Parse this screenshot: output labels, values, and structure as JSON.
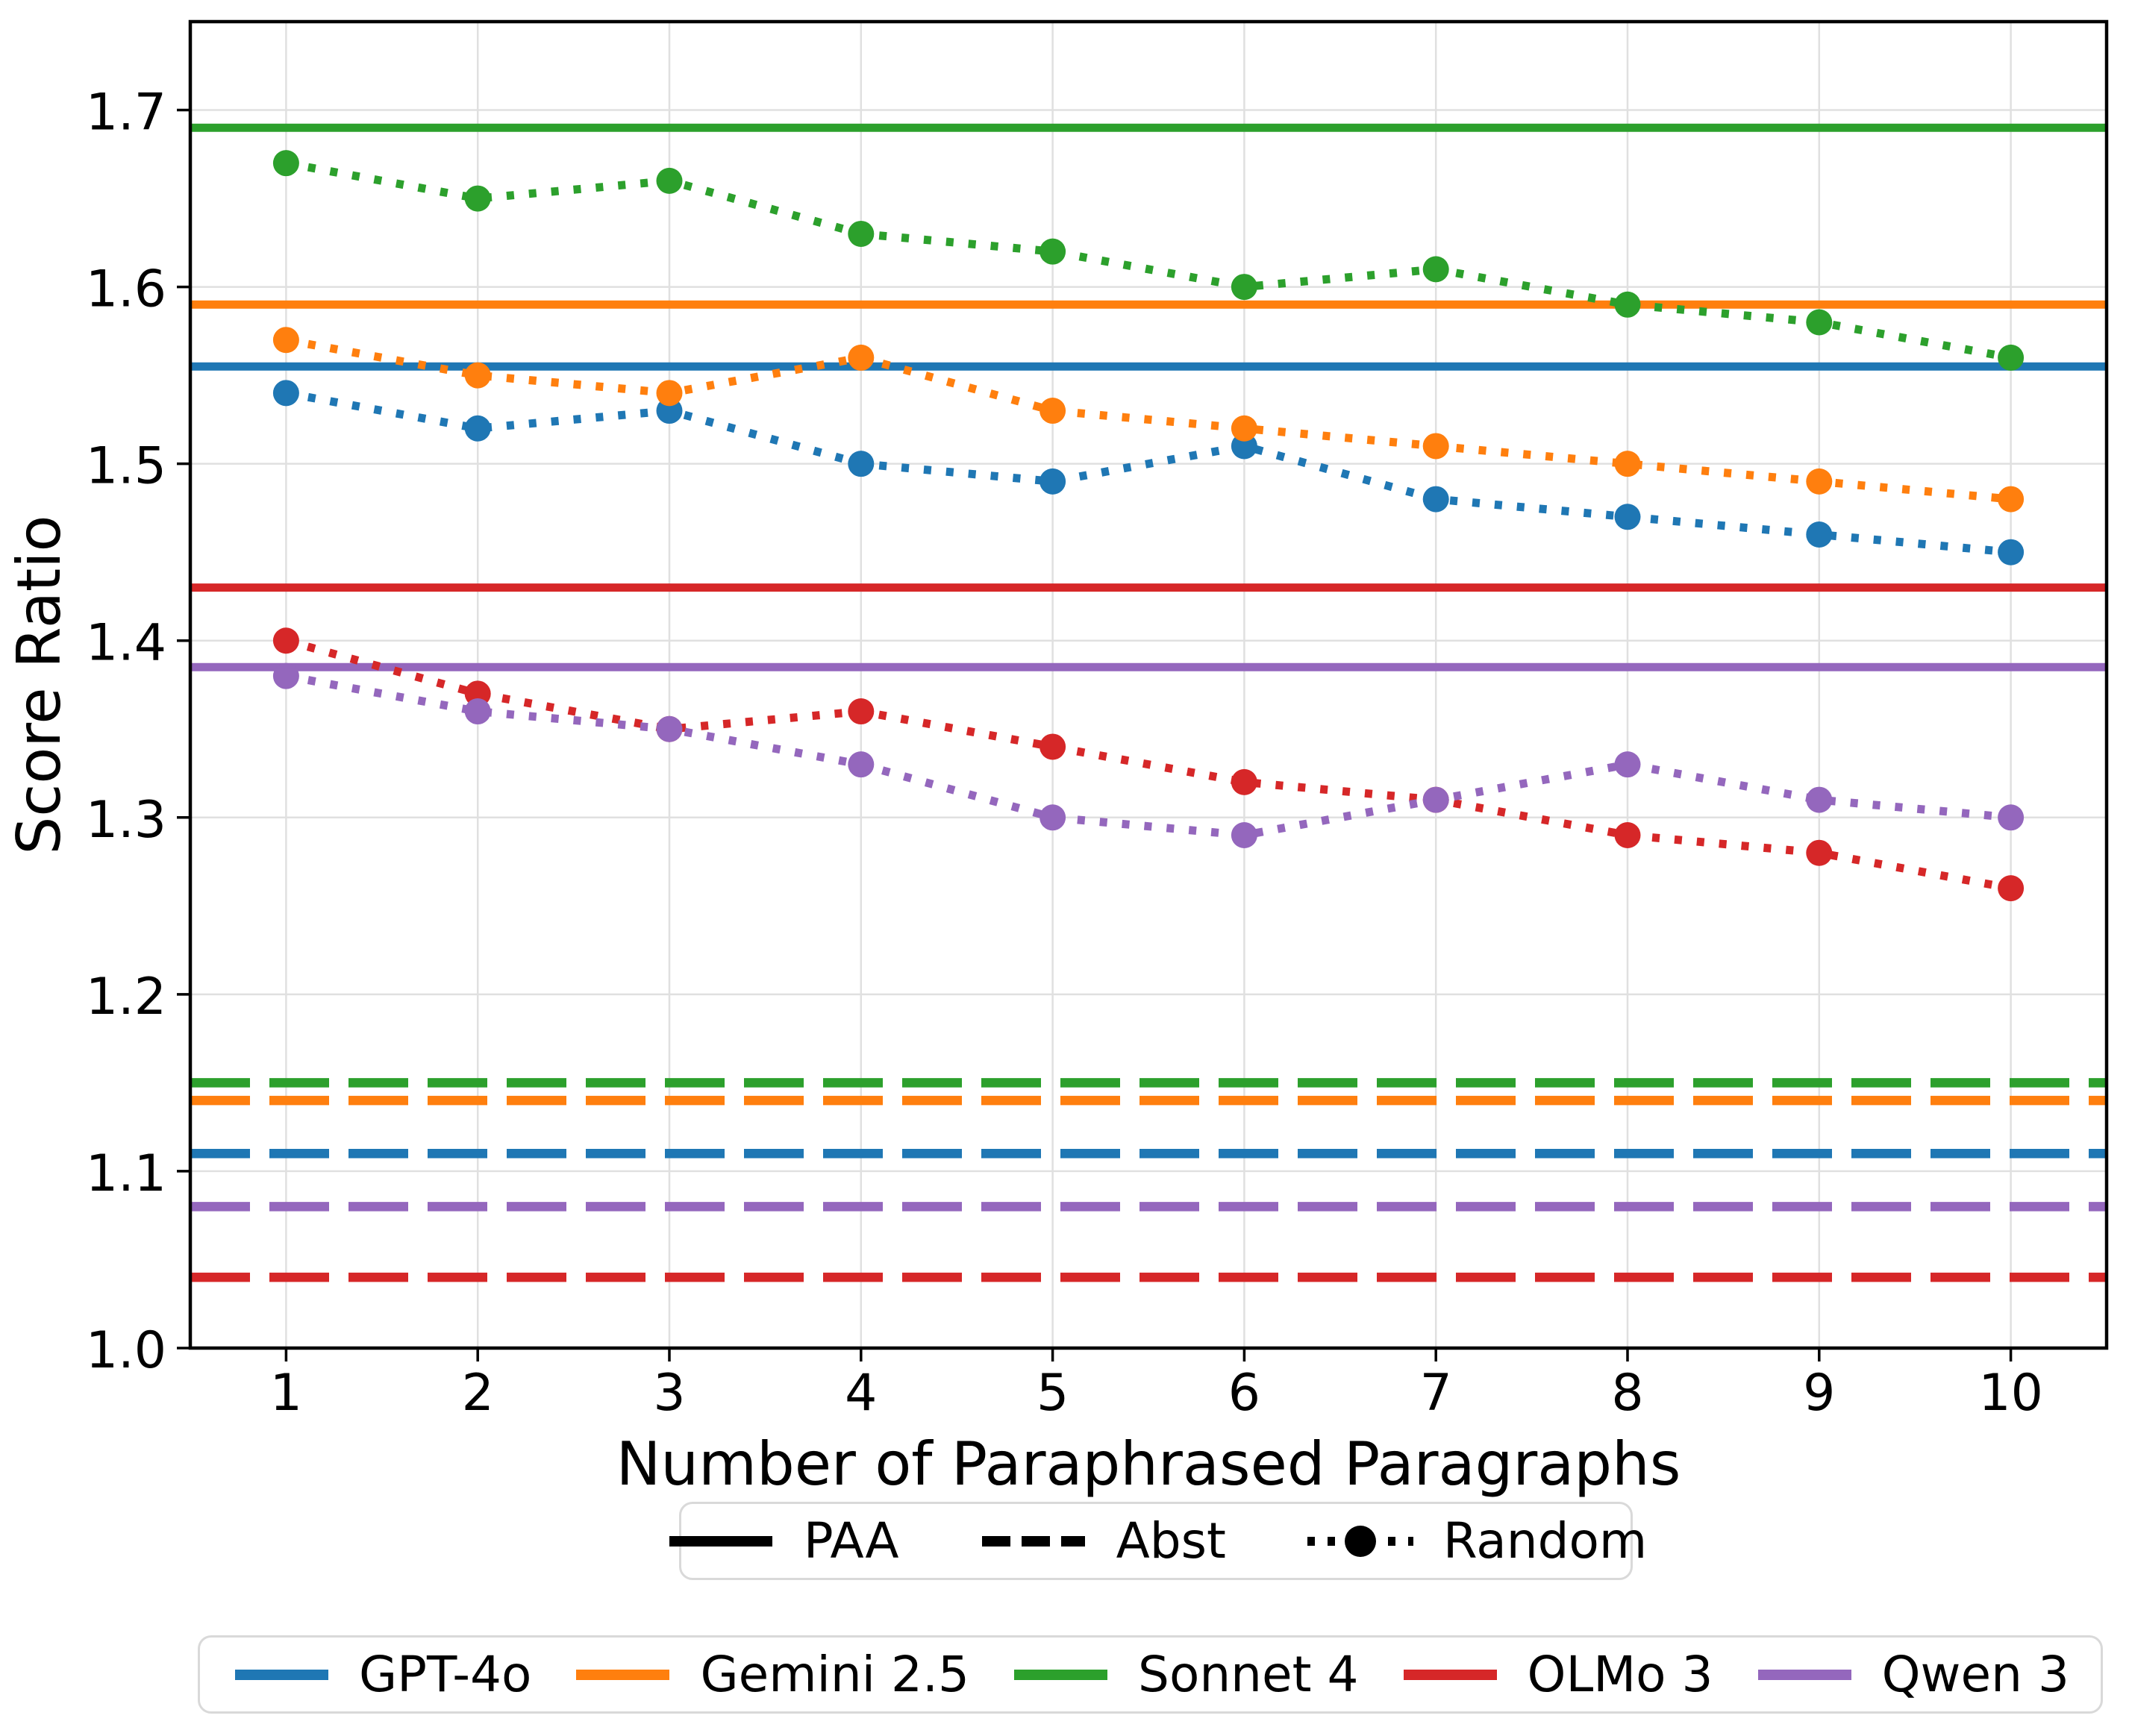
{
  "figure": {
    "background": "#ffffff"
  },
  "axes": {
    "xlabel": "Number of Paraphrased Paragraphs",
    "ylabel": "Score Ratio",
    "xtick_labels": [
      "1",
      "2",
      "3",
      "4",
      "5",
      "6",
      "7",
      "8",
      "9",
      "10"
    ],
    "ytick_labels": [
      "1.0",
      "1.1",
      "1.2",
      "1.3",
      "1.4",
      "1.5",
      "1.6",
      "1.7"
    ]
  },
  "style_legend": {
    "items": [
      {
        "label": "PAA",
        "line_style": "solid"
      },
      {
        "label": "Abst",
        "line_style": "dashed"
      },
      {
        "label": "Random",
        "line_style": "dotted-marker"
      }
    ]
  },
  "model_legend": {
    "items": [
      {
        "label": "GPT-4o",
        "color": "#1f77b4"
      },
      {
        "label": "Gemini 2.5",
        "color": "#ff7f0e"
      },
      {
        "label": "Sonnet 4",
        "color": "#2ca02c"
      },
      {
        "label": "OLMo 3",
        "color": "#d62728"
      },
      {
        "label": "Qwen 3",
        "color": "#9467bd"
      }
    ]
  },
  "chart_data": {
    "type": "line",
    "title": "",
    "xlabel": "Number of Paraphrased Paragraphs",
    "ylabel": "Score Ratio",
    "x": [
      1,
      2,
      3,
      4,
      5,
      6,
      7,
      8,
      9,
      10
    ],
    "xlim": [
      0.5,
      10.5
    ],
    "ylim": [
      1.0,
      1.75
    ],
    "xticks": [
      1,
      2,
      3,
      4,
      5,
      6,
      7,
      8,
      9,
      10
    ],
    "yticks": [
      1.0,
      1.1,
      1.2,
      1.3,
      1.4,
      1.5,
      1.6,
      1.7
    ],
    "grid": true,
    "grid_color": "#e0e0e0",
    "legend_position": "below",
    "conditions": [
      "PAA",
      "Abst",
      "Random"
    ],
    "series": [
      {
        "model": "GPT-4o",
        "color": "#1f77b4",
        "paa": 1.555,
        "abst": 1.11,
        "random": [
          1.54,
          1.52,
          1.53,
          1.5,
          1.49,
          1.51,
          1.48,
          1.47,
          1.46,
          1.45
        ]
      },
      {
        "model": "Gemini 2.5",
        "color": "#ff7f0e",
        "paa": 1.59,
        "abst": 1.14,
        "random": [
          1.57,
          1.55,
          1.54,
          1.56,
          1.53,
          1.52,
          1.51,
          1.5,
          1.49,
          1.48
        ]
      },
      {
        "model": "Sonnet 4",
        "color": "#2ca02c",
        "paa": 1.69,
        "abst": 1.15,
        "random": [
          1.67,
          1.65,
          1.66,
          1.63,
          1.62,
          1.6,
          1.61,
          1.59,
          1.58,
          1.56
        ]
      },
      {
        "model": "OLMo 3",
        "color": "#d62728",
        "paa": 1.43,
        "abst": 1.04,
        "random": [
          1.4,
          1.37,
          1.35,
          1.36,
          1.34,
          1.32,
          1.31,
          1.29,
          1.28,
          1.26
        ]
      },
      {
        "model": "Qwen 3",
        "color": "#9467bd",
        "paa": 1.385,
        "abst": 1.08,
        "random": [
          1.38,
          1.36,
          1.35,
          1.33,
          1.3,
          1.29,
          1.31,
          1.33,
          1.31,
          1.3
        ]
      }
    ]
  }
}
